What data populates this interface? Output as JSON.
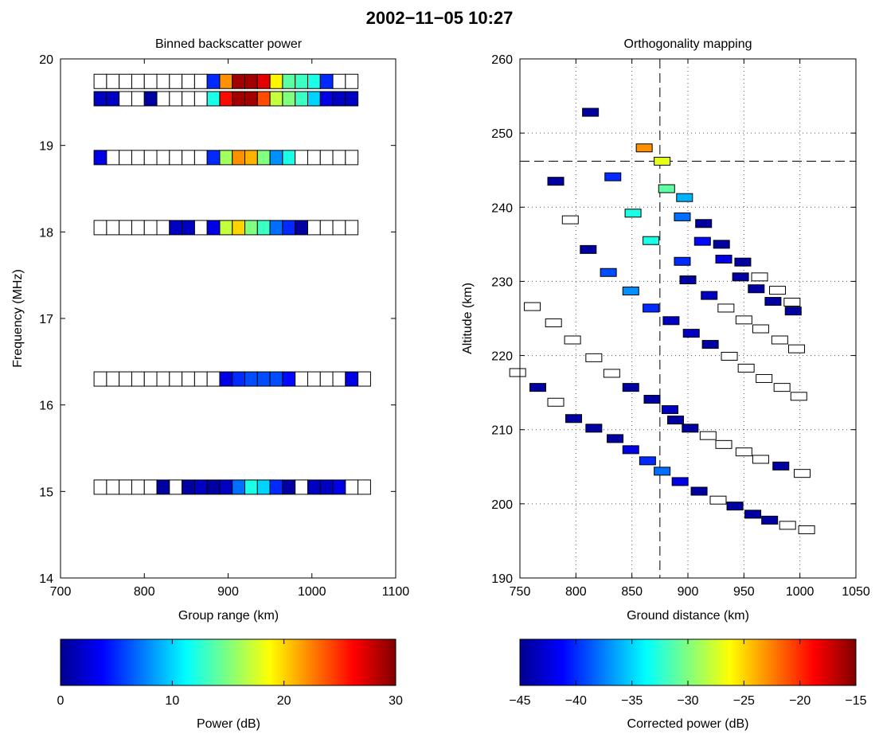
{
  "figure": {
    "title": "2002−11−05 10:27"
  },
  "chart_data": [
    {
      "type": "heatmap",
      "title": "Binned backscatter power",
      "xlabel": "Group range (km)",
      "ylabel": "Frequency (MHz)",
      "xlim": [
        700,
        1100
      ],
      "ylim": [
        14,
        20
      ],
      "xticks": [
        700,
        800,
        900,
        1000,
        1100
      ],
      "yticks": [
        14,
        15,
        16,
        17,
        18,
        19,
        20
      ],
      "grid": false,
      "x_bins_start": 740,
      "x_bin_width": 15,
      "rows": [
        {
          "frequency": 19.74,
          "power": [
            null,
            null,
            null,
            null,
            null,
            null,
            null,
            null,
            null,
            5,
            22,
            29,
            29,
            27,
            19,
            14,
            13,
            12,
            5,
            null,
            null
          ]
        },
        {
          "frequency": 19.54,
          "power": [
            2,
            2,
            null,
            null,
            1,
            null,
            null,
            null,
            null,
            12,
            26,
            29,
            29,
            24,
            17,
            15,
            13,
            10,
            3,
            2,
            2
          ]
        },
        {
          "frequency": 18.86,
          "power": [
            3,
            null,
            null,
            null,
            null,
            null,
            null,
            null,
            null,
            5,
            16,
            22,
            21,
            15,
            8,
            12,
            null,
            null,
            null,
            null,
            null
          ]
        },
        {
          "frequency": 18.05,
          "power": [
            null,
            null,
            null,
            null,
            null,
            null,
            2,
            2,
            null,
            3,
            17,
            20,
            15,
            13,
            7,
            5,
            1,
            null,
            null,
            null,
            null
          ]
        },
        {
          "frequency": 16.3,
          "power": [
            null,
            null,
            null,
            null,
            null,
            null,
            null,
            null,
            null,
            null,
            3,
            5,
            6,
            6,
            6,
            4,
            null,
            null,
            null,
            null,
            3,
            null
          ]
        },
        {
          "frequency": 15.05,
          "power": [
            null,
            null,
            null,
            null,
            null,
            1,
            null,
            1,
            2,
            1,
            2,
            7,
            12,
            10,
            5,
            1,
            null,
            2,
            2,
            3,
            null,
            null
          ]
        }
      ],
      "colorbar": {
        "label": "Power (dB)",
        "lim": [
          0,
          30
        ],
        "ticks": [
          0,
          10,
          20,
          30
        ]
      }
    },
    {
      "type": "scatter",
      "title": "Orthogonality mapping",
      "xlabel": "Ground distance (km)",
      "ylabel": "Altitude (km)",
      "xlim": [
        750,
        1050
      ],
      "ylim": [
        190,
        260
      ],
      "xticks": [
        750,
        800,
        850,
        900,
        950,
        1000,
        1050
      ],
      "yticks": [
        190,
        200,
        210,
        220,
        230,
        240,
        250,
        260
      ],
      "grid": true,
      "crosshair": {
        "x": 875,
        "y": 246.2
      },
      "colorbar": {
        "label": "Corrected power (dB)",
        "lim": [
          -45,
          -15
        ],
        "ticks": [
          -45,
          -40,
          -35,
          -30,
          -25,
          -20,
          -15
        ]
      },
      "points": [
        {
          "x": 813,
          "y": 252.8,
          "c": -44
        },
        {
          "x": 861,
          "y": 248.0,
          "c": -23
        },
        {
          "x": 877,
          "y": 246.2,
          "c": -27
        },
        {
          "x": 833,
          "y": 244.1,
          "c": -40
        },
        {
          "x": 782,
          "y": 243.5,
          "c": -44
        },
        {
          "x": 881,
          "y": 242.5,
          "c": -31
        },
        {
          "x": 897,
          "y": 241.3,
          "c": -36
        },
        {
          "x": 851,
          "y": 239.2,
          "c": -33
        },
        {
          "x": 895,
          "y": 238.7,
          "c": -38
        },
        {
          "x": 795,
          "y": 238.3,
          "c": null
        },
        {
          "x": 914,
          "y": 237.8,
          "c": -44
        },
        {
          "x": 867,
          "y": 235.5,
          "c": -33
        },
        {
          "x": 913,
          "y": 235.4,
          "c": -41
        },
        {
          "x": 930,
          "y": 235.0,
          "c": -44
        },
        {
          "x": 811,
          "y": 234.3,
          "c": -44
        },
        {
          "x": 895,
          "y": 232.7,
          "c": -40
        },
        {
          "x": 932,
          "y": 233.0,
          "c": -42
        },
        {
          "x": 949,
          "y": 232.6,
          "c": -44
        },
        {
          "x": 829,
          "y": 231.2,
          "c": -39
        },
        {
          "x": 947,
          "y": 230.6,
          "c": -44
        },
        {
          "x": 964,
          "y": 230.6,
          "c": null
        },
        {
          "x": 900,
          "y": 230.2,
          "c": -44
        },
        {
          "x": 961,
          "y": 229.0,
          "c": -44
        },
        {
          "x": 980,
          "y": 228.8,
          "c": null
        },
        {
          "x": 849,
          "y": 228.7,
          "c": -37
        },
        {
          "x": 919,
          "y": 228.1,
          "c": -43
        },
        {
          "x": 976,
          "y": 227.3,
          "c": -44
        },
        {
          "x": 993,
          "y": 227.2,
          "c": null
        },
        {
          "x": 761,
          "y": 226.6,
          "c": null
        },
        {
          "x": 867,
          "y": 226.4,
          "c": -40
        },
        {
          "x": 934,
          "y": 226.4,
          "c": null
        },
        {
          "x": 994,
          "y": 226.0,
          "c": -44
        },
        {
          "x": 885,
          "y": 224.7,
          "c": -43
        },
        {
          "x": 950,
          "y": 224.8,
          "c": null
        },
        {
          "x": 780,
          "y": 224.4,
          "c": null
        },
        {
          "x": 965,
          "y": 223.6,
          "c": null
        },
        {
          "x": 903,
          "y": 223.0,
          "c": -43
        },
        {
          "x": 982,
          "y": 222.1,
          "c": null
        },
        {
          "x": 797,
          "y": 222.1,
          "c": null
        },
        {
          "x": 920,
          "y": 221.5,
          "c": -44
        },
        {
          "x": 997,
          "y": 220.9,
          "c": null
        },
        {
          "x": 937,
          "y": 219.9,
          "c": null
        },
        {
          "x": 816,
          "y": 219.7,
          "c": null
        },
        {
          "x": 952,
          "y": 218.3,
          "c": null
        },
        {
          "x": 748,
          "y": 217.7,
          "c": null
        },
        {
          "x": 832,
          "y": 217.6,
          "c": null
        },
        {
          "x": 968,
          "y": 216.9,
          "c": null
        },
        {
          "x": 766,
          "y": 215.7,
          "c": -44
        },
        {
          "x": 849,
          "y": 215.7,
          "c": -44
        },
        {
          "x": 984,
          "y": 215.7,
          "c": null
        },
        {
          "x": 868,
          "y": 214.1,
          "c": -44
        },
        {
          "x": 999,
          "y": 214.5,
          "c": null
        },
        {
          "x": 782,
          "y": 213.7,
          "c": null
        },
        {
          "x": 884,
          "y": 212.7,
          "c": -43
        },
        {
          "x": 798,
          "y": 211.5,
          "c": -44
        },
        {
          "x": 889,
          "y": 211.3,
          "c": -44
        },
        {
          "x": 816,
          "y": 210.2,
          "c": -44
        },
        {
          "x": 902,
          "y": 210.2,
          "c": -44
        },
        {
          "x": 918,
          "y": 209.2,
          "c": null
        },
        {
          "x": 835,
          "y": 208.8,
          "c": -44
        },
        {
          "x": 932,
          "y": 208.0,
          "c": null
        },
        {
          "x": 950,
          "y": 207.0,
          "c": null
        },
        {
          "x": 849,
          "y": 207.3,
          "c": -42
        },
        {
          "x": 965,
          "y": 206.0,
          "c": null
        },
        {
          "x": 864,
          "y": 205.8,
          "c": -40
        },
        {
          "x": 983,
          "y": 205.1,
          "c": -44
        },
        {
          "x": 1002,
          "y": 204.1,
          "c": null
        },
        {
          "x": 877,
          "y": 204.4,
          "c": -38
        },
        {
          "x": 893,
          "y": 203.0,
          "c": -42
        },
        {
          "x": 910,
          "y": 201.7,
          "c": -44
        },
        {
          "x": 927,
          "y": 200.5,
          "c": null
        },
        {
          "x": 942,
          "y": 199.7,
          "c": -44
        },
        {
          "x": 958,
          "y": 198.6,
          "c": -44
        },
        {
          "x": 973,
          "y": 197.8,
          "c": -44
        },
        {
          "x": 989,
          "y": 197.1,
          "c": null
        },
        {
          "x": 1006,
          "y": 196.5,
          "c": null
        }
      ]
    }
  ]
}
